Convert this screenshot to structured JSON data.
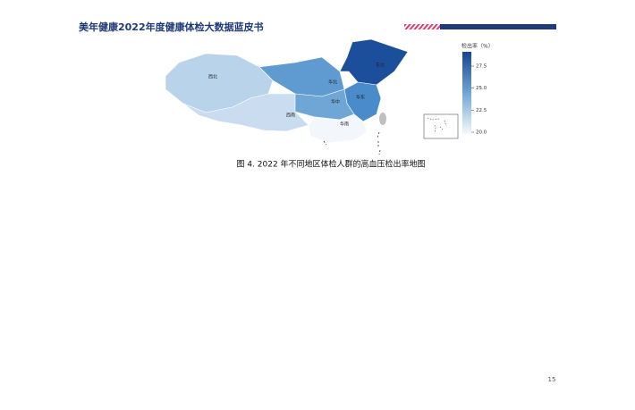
{
  "header": {
    "title": "美年健康2022年度健康体检大数据蓝皮书"
  },
  "figure": {
    "regions": [
      {
        "label": "西北",
        "color": "#b9d3ea"
      },
      {
        "label": "西南",
        "color": "#cadcef"
      },
      {
        "label": "华北",
        "color": "#5f9bd0"
      },
      {
        "label": "东北",
        "color": "#1b4f9c"
      },
      {
        "label": "华东",
        "color": "#4a8bcb"
      },
      {
        "label": "华中",
        "color": "#6ea6d6"
      },
      {
        "label": "华南",
        "color": "#f3f6fa"
      }
    ],
    "legend": {
      "title": "检出率（%）",
      "ticks": [
        "27.5",
        "25.0",
        "22.5",
        "20.0"
      ]
    },
    "caption": "图 4. 2022 年不同地区体检人群的高血压检出率地图"
  },
  "page_number": "15"
}
